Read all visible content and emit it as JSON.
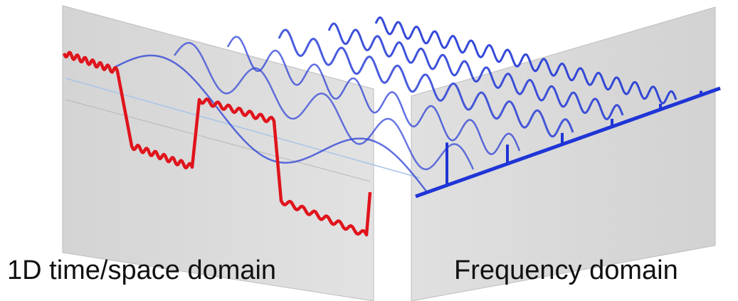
{
  "labels": {
    "time_domain": "1D time/space domain",
    "frequency_domain": "Frequency domain"
  }
}
